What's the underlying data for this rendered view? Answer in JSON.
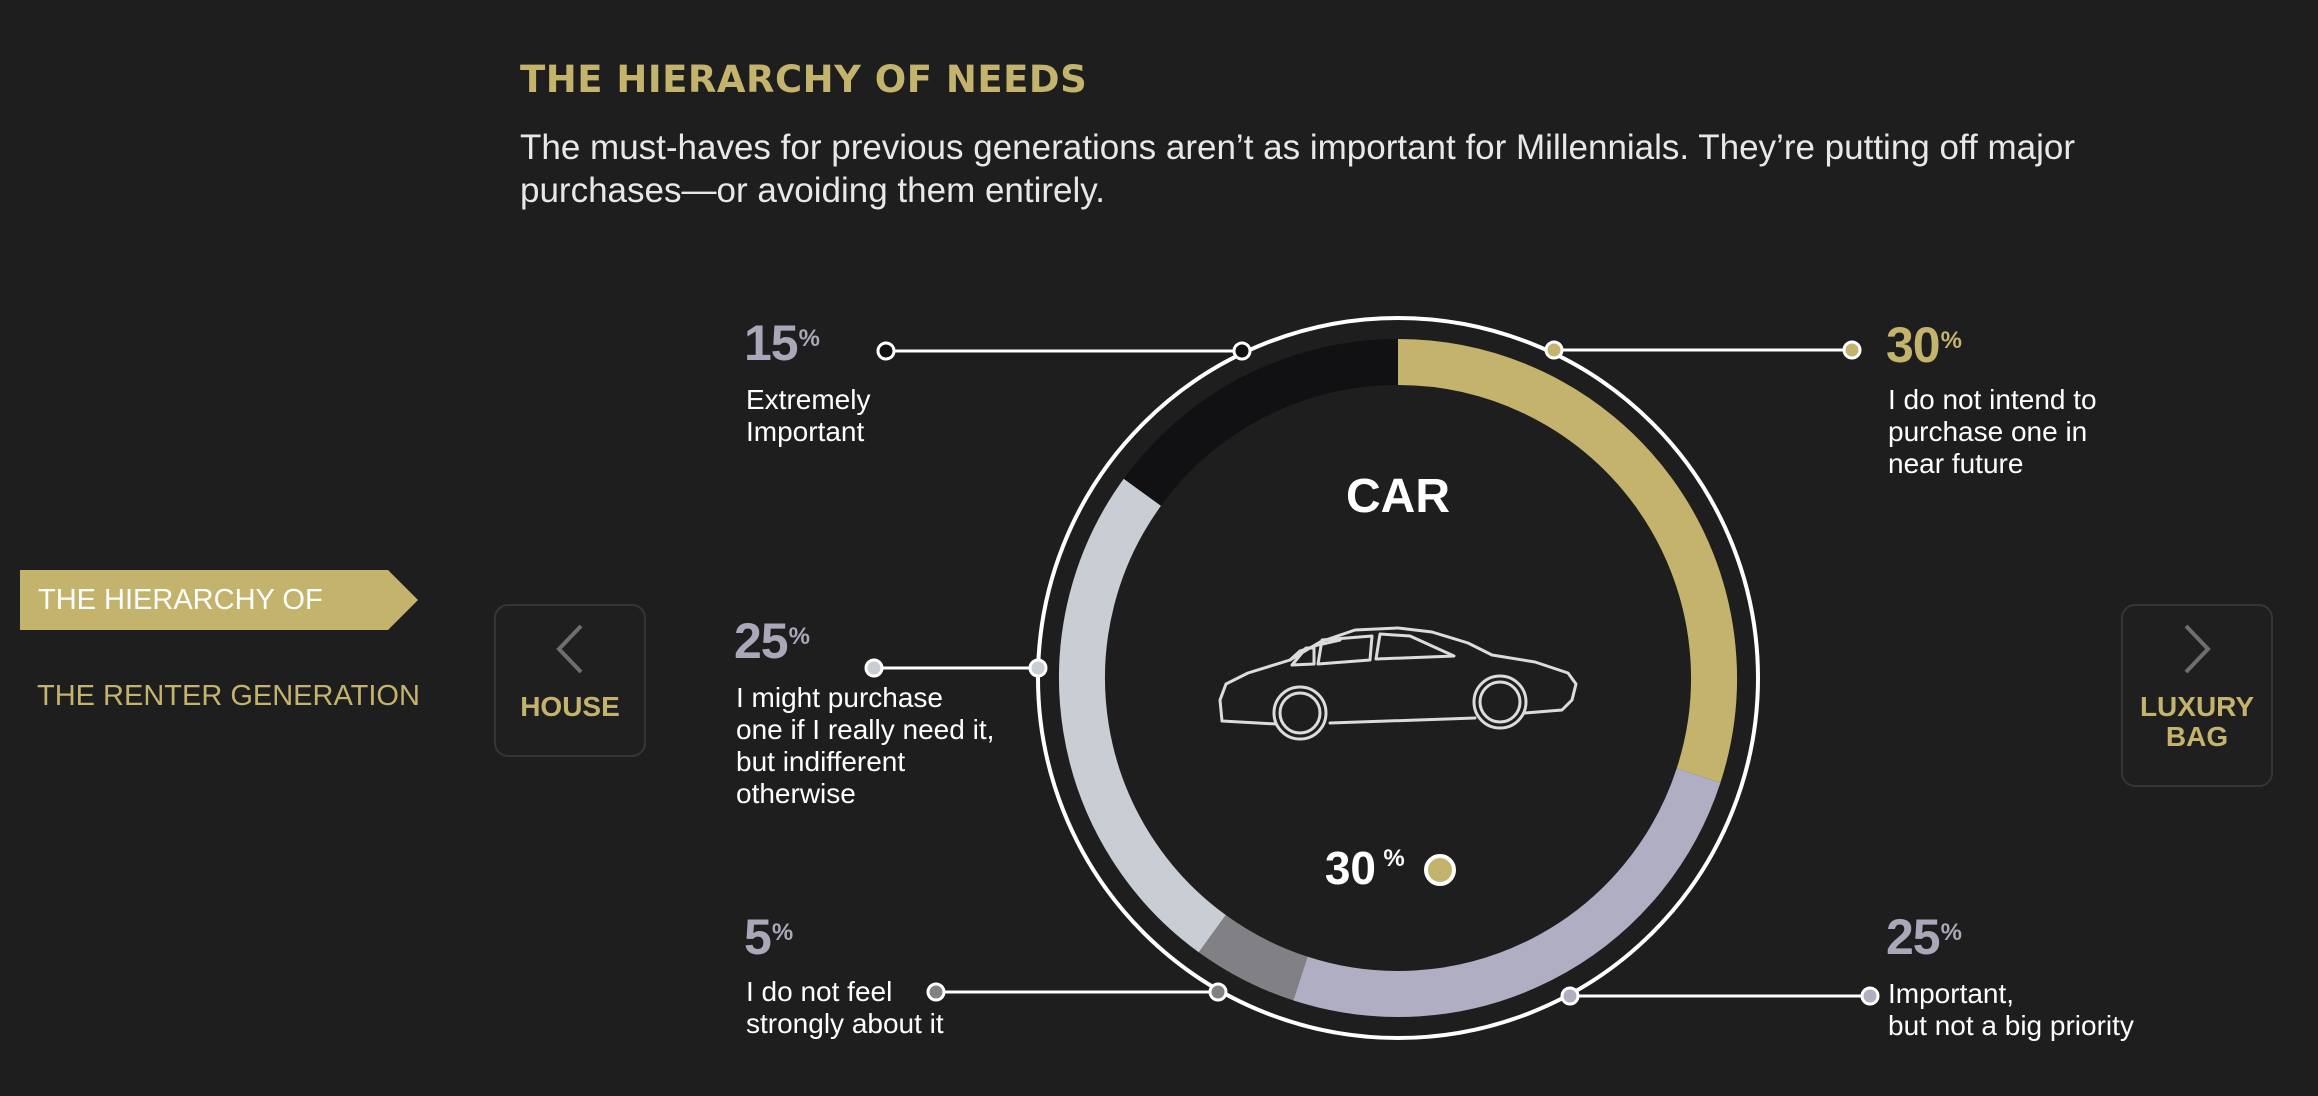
{
  "heading": "THE HIERARCHY OF NEEDS",
  "subtitle": "The must-haves for previous generations aren’t as important for Millennials. They’re putting off major purchases—or avoiding them entirely.",
  "sidebar": {
    "items": [
      {
        "label": "THE HIERARCHY OF NEEDS",
        "active": true
      },
      {
        "label": "THE RENTER GENERATION",
        "active": false
      }
    ]
  },
  "nav": {
    "prev_label": "HOUSE",
    "next_label_line1": "LUXURY",
    "next_label_line2": "BAG"
  },
  "colors": {
    "accent": "#c3b36c",
    "background": "#1e1e1e",
    "label_pct": "#a9a8b8"
  },
  "chart_data": {
    "type": "donut",
    "title": "CAR",
    "icon": "car-icon",
    "center_value": "30",
    "center_unit": "%",
    "series": [
      {
        "pct": "30",
        "unit": "%",
        "value": 30,
        "label_lines": [
          "I do not intend to",
          "purchase one in",
          "near future"
        ],
        "color": "#c3b36c"
      },
      {
        "pct": "25",
        "unit": "%",
        "value": 25,
        "label_lines": [
          "Important,",
          "but not a big priority"
        ],
        "color": "#b0aec2"
      },
      {
        "pct": "5",
        "unit": "%",
        "value": 5,
        "label_lines": [
          "I do not feel",
          "strongly about it"
        ],
        "color": "#808085"
      },
      {
        "pct": "25",
        "unit": "%",
        "value": 25,
        "label_lines": [
          "I might purchase",
          "one if I really need it,",
          "but indifferent",
          "otherwise"
        ],
        "color": "#c8ced4"
      },
      {
        "pct": "15",
        "unit": "%",
        "value": 15,
        "label_lines": [
          "Extremely",
          "Important"
        ],
        "color": "#111113"
      }
    ]
  }
}
